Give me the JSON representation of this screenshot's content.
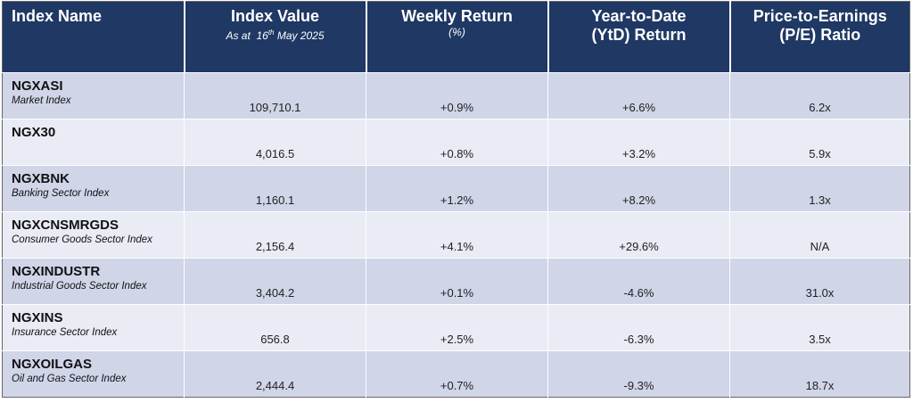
{
  "headers": {
    "index_name": "Index Name",
    "index_value": "Index Value",
    "index_value_sub": "As at  16th May 2025",
    "weekly_return": "Weekly Return",
    "weekly_return_sub": "(%)",
    "ytd_line1": "Year-to-Date",
    "ytd_line2": "(YtD) Return",
    "pe_line1": "Price-to-Earnings",
    "pe_line2": "(P/E) Ratio"
  },
  "rows": [
    {
      "name": "NGXASI",
      "desc": "Market Index",
      "value": "109,710.1",
      "weekly": "+0.9%",
      "ytd": "+6.6%",
      "pe": "6.2x"
    },
    {
      "name": "NGX30",
      "desc": "",
      "value": "4,016.5",
      "weekly": "+0.8%",
      "ytd": "+3.2%",
      "pe": "5.9x"
    },
    {
      "name": "NGXBNK",
      "desc": "Banking Sector Index",
      "value": "1,160.1",
      "weekly": "+1.2%",
      "ytd": "+8.2%",
      "pe": "1.3x"
    },
    {
      "name": "NGXCNSMRGDS",
      "desc": "Consumer Goods Sector Index",
      "value": "2,156.4",
      "weekly": "+4.1%",
      "ytd": "+29.6%",
      "pe": "N/A"
    },
    {
      "name": "NGXINDUSTR",
      "desc": "Industrial Goods Sector Index",
      "value": "3,404.2",
      "weekly": "+0.1%",
      "ytd": "-4.6%",
      "pe": "31.0x"
    },
    {
      "name": "NGXINS",
      "desc": "Insurance Sector Index",
      "value": "656.8",
      "weekly": "+2.5%",
      "ytd": "-6.3%",
      "pe": "3.5x"
    },
    {
      "name": "NGXOILGAS",
      "desc": "Oil and Gas Sector Index",
      "value": "2,444.4",
      "weekly": "+0.7%",
      "ytd": "-9.3%",
      "pe": "18.7x"
    }
  ],
  "colors": {
    "header_bg": "#1f3864",
    "row_dark": "#d0d5e8",
    "row_light": "#e9ebf5"
  }
}
